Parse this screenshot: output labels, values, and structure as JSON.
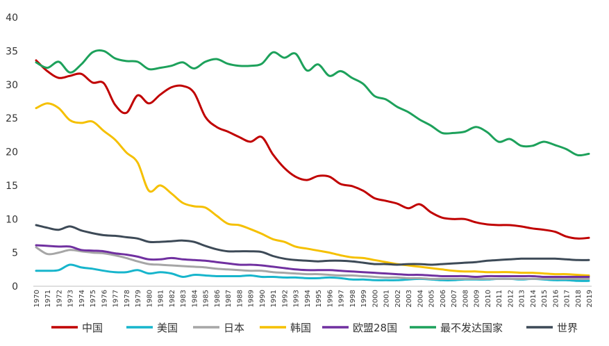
{
  "chart_data": {
    "type": "line",
    "title": "",
    "xlabel": "",
    "ylabel": "",
    "ylim": [
      0,
      40
    ],
    "yticks": [
      0,
      5,
      10,
      15,
      20,
      25,
      30,
      35,
      40
    ],
    "grid": false,
    "legend": "bottom",
    "x": [
      "1970",
      "1971",
      "1972",
      "1973",
      "1974",
      "1975",
      "1976",
      "1977",
      "1978",
      "1979",
      "1980",
      "1981",
      "1982",
      "1983",
      "1984",
      "1985",
      "1986",
      "1987",
      "1988",
      "1989",
      "1990",
      "1991",
      "1992",
      "1993",
      "1994",
      "1995",
      "1996",
      "1997",
      "1998",
      "1999",
      "2000",
      "2001",
      "2002",
      "2003",
      "2004",
      "2005",
      "2006",
      "2007",
      "2008",
      "2009",
      "2010",
      "2011",
      "2012",
      "2013",
      "2014",
      "2015",
      "2016",
      "2017",
      "2018",
      "2019"
    ],
    "series": [
      {
        "name": "中国",
        "color": "#c00000",
        "values": [
          33.6,
          32.0,
          31.0,
          31.3,
          31.6,
          30.3,
          30.2,
          27.0,
          25.8,
          28.4,
          27.2,
          28.5,
          29.6,
          29.8,
          28.8,
          25.2,
          23.7,
          23.0,
          22.2,
          21.5,
          22.2,
          19.6,
          17.6,
          16.3,
          15.8,
          16.4,
          16.3,
          15.2,
          14.9,
          14.2,
          13.1,
          12.7,
          12.3,
          11.6,
          12.2,
          11.0,
          10.2,
          10.0,
          10.0,
          9.5,
          9.2,
          9.1,
          9.1,
          8.9,
          8.6,
          8.4,
          8.1,
          7.4,
          7.1,
          7.2
        ]
      },
      {
        "name": "美国",
        "color": "#17b5cc",
        "values": [
          2.3,
          2.3,
          2.4,
          3.2,
          2.8,
          2.6,
          2.3,
          2.1,
          2.1,
          2.4,
          1.9,
          2.1,
          1.9,
          1.4,
          1.7,
          1.6,
          1.5,
          1.5,
          1.5,
          1.6,
          1.4,
          1.4,
          1.3,
          1.3,
          1.2,
          1.2,
          1.3,
          1.2,
          1.0,
          1.0,
          0.9,
          0.9,
          0.9,
          1.0,
          1.1,
          1.0,
          0.9,
          0.9,
          1.0,
          1.0,
          1.0,
          1.1,
          1.1,
          1.0,
          1.1,
          1.0,
          0.9,
          0.9,
          0.8,
          0.8
        ]
      },
      {
        "name": "日本",
        "color": "#a6a6a6",
        "values": [
          5.8,
          4.8,
          5.0,
          5.4,
          5.2,
          5.0,
          4.9,
          4.6,
          4.2,
          3.7,
          3.3,
          3.2,
          3.1,
          3.0,
          2.9,
          2.8,
          2.6,
          2.5,
          2.4,
          2.3,
          2.3,
          2.1,
          2.0,
          1.9,
          1.8,
          1.8,
          1.7,
          1.6,
          1.6,
          1.5,
          1.4,
          1.3,
          1.3,
          1.2,
          1.2,
          1.1,
          1.1,
          1.1,
          1.1,
          1.1,
          1.1,
          1.1,
          1.1,
          1.1,
          1.1,
          1.1,
          1.1,
          1.1,
          1.1,
          1.1
        ]
      },
      {
        "name": "韩国",
        "color": "#f5c000",
        "values": [
          26.5,
          27.2,
          26.5,
          24.7,
          24.3,
          24.5,
          23.1,
          21.8,
          19.9,
          18.4,
          14.2,
          15.0,
          13.8,
          12.4,
          11.9,
          11.7,
          10.5,
          9.3,
          9.1,
          8.5,
          7.8,
          7.0,
          6.6,
          5.9,
          5.6,
          5.3,
          5.0,
          4.6,
          4.3,
          4.2,
          3.9,
          3.6,
          3.3,
          3.1,
          2.9,
          2.7,
          2.5,
          2.3,
          2.2,
          2.2,
          2.1,
          2.1,
          2.1,
          2.0,
          2.0,
          1.9,
          1.8,
          1.8,
          1.7,
          1.6
        ]
      },
      {
        "name": "欧盟28国",
        "color": "#7030a0",
        "values": [
          6.1,
          6.0,
          5.9,
          5.9,
          5.4,
          5.3,
          5.2,
          4.9,
          4.7,
          4.4,
          4.0,
          4.0,
          4.2,
          4.0,
          3.9,
          3.8,
          3.6,
          3.4,
          3.2,
          3.2,
          3.1,
          2.9,
          2.7,
          2.5,
          2.4,
          2.4,
          2.4,
          2.3,
          2.2,
          2.1,
          2.0,
          1.9,
          1.8,
          1.7,
          1.7,
          1.6,
          1.5,
          1.5,
          1.5,
          1.4,
          1.5,
          1.5,
          1.5,
          1.5,
          1.5,
          1.4,
          1.4,
          1.4,
          1.4,
          1.4
        ]
      },
      {
        "name": "最不发达国家",
        "color": "#1da15b",
        "values": [
          33.3,
          32.5,
          33.4,
          31.8,
          33.0,
          34.8,
          35.0,
          33.9,
          33.5,
          33.4,
          32.3,
          32.5,
          32.8,
          33.3,
          32.4,
          33.4,
          33.8,
          33.1,
          32.8,
          32.8,
          33.1,
          34.8,
          34.0,
          34.6,
          32.1,
          33.0,
          31.3,
          32.0,
          31.0,
          30.1,
          28.3,
          27.8,
          26.7,
          25.9,
          24.8,
          23.9,
          22.8,
          22.8,
          23.0,
          23.7,
          22.9,
          21.5,
          21.9,
          20.9,
          20.9,
          21.5,
          21.0,
          20.4,
          19.5,
          19.7
        ]
      },
      {
        "name": "世界",
        "color": "#3d4a57",
        "values": [
          9.1,
          8.7,
          8.4,
          8.9,
          8.3,
          7.9,
          7.6,
          7.5,
          7.3,
          7.1,
          6.6,
          6.6,
          6.7,
          6.8,
          6.6,
          6.0,
          5.5,
          5.2,
          5.2,
          5.2,
          5.1,
          4.5,
          4.1,
          3.9,
          3.8,
          3.7,
          3.8,
          3.8,
          3.7,
          3.5,
          3.3,
          3.3,
          3.2,
          3.3,
          3.3,
          3.2,
          3.3,
          3.4,
          3.5,
          3.6,
          3.8,
          3.9,
          4.0,
          4.1,
          4.1,
          4.1,
          4.1,
          4.0,
          3.9,
          3.9
        ]
      }
    ]
  }
}
